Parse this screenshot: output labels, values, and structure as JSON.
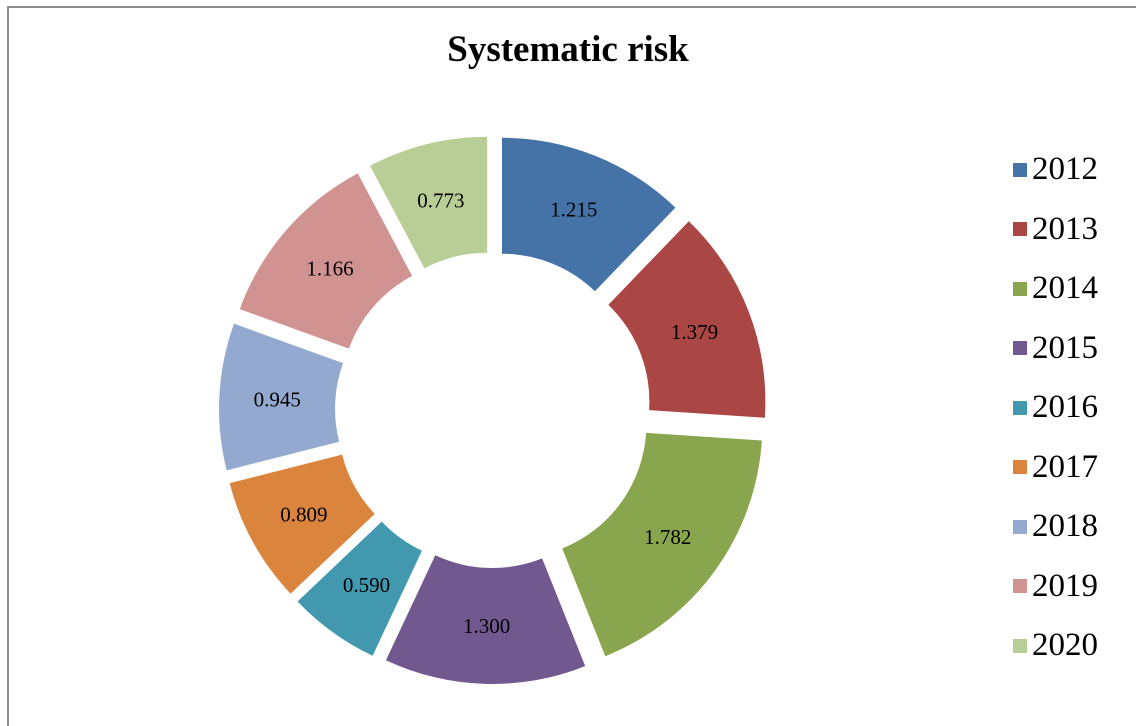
{
  "chart_data": {
    "type": "pie",
    "variant": "doughnut-exploded",
    "title": "Systematic risk",
    "categories": [
      "2012",
      "2013",
      "2014",
      "2015",
      "2016",
      "2017",
      "2018",
      "2019",
      "2020"
    ],
    "values": [
      1.215,
      1.379,
      1.782,
      1.3,
      0.59,
      0.809,
      0.945,
      1.166,
      0.773
    ],
    "value_labels": [
      "1.215",
      "1.379",
      "1.782",
      "1.300",
      "0.590",
      "0.809",
      "0.945",
      "1.166",
      "0.773"
    ],
    "colors": [
      "#4572A7",
      "#AA4643",
      "#89A54E",
      "#71588F",
      "#4198AF",
      "#DB843D",
      "#93A9CF",
      "#D19392",
      "#B9CD96"
    ],
    "legend_position": "right",
    "grid": false
  }
}
